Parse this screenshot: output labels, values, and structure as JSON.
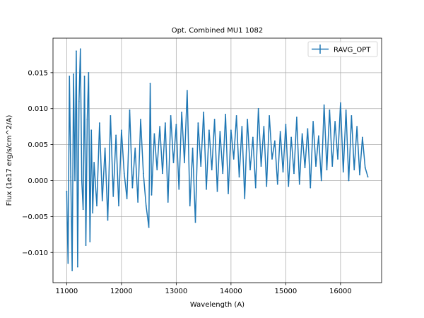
{
  "chart_data": {
    "type": "line",
    "title": "Opt. Combined MU1 1082",
    "xlabel": "Wavelength (A)",
    "ylabel": "Flux (1e17 erg/s/cm^2/A)",
    "xlim": [
      10750,
      16750
    ],
    "ylim": [
      -0.0142,
      0.0198
    ],
    "grid": true,
    "legend_position": "top-right",
    "x_ticks": [
      11000,
      12000,
      13000,
      14000,
      15000,
      16000
    ],
    "x_tick_labels": [
      "11000",
      "12000",
      "13000",
      "14000",
      "15000",
      "16000"
    ],
    "y_ticks": [
      -0.01,
      -0.005,
      0.0,
      0.005,
      0.01,
      0.015
    ],
    "y_tick_labels": [
      "−0.010",
      "−0.005",
      "0.000",
      "0.005",
      "0.010",
      "0.015"
    ],
    "series": [
      {
        "name": "RAVG_OPT",
        "color": "#1f77b4",
        "style": "errorbar-line",
        "x": [
          11000,
          11025,
          11050,
          11075,
          11100,
          11125,
          11150,
          11175,
          11200,
          11225,
          11250,
          11275,
          11300,
          11325,
          11350,
          11375,
          11400,
          11425,
          11450,
          11475,
          11500,
          11550,
          11600,
          11650,
          11700,
          11750,
          11800,
          11850,
          11900,
          11950,
          12000,
          12050,
          12100,
          12150,
          12200,
          12250,
          12300,
          12350,
          12400,
          12450,
          12500,
          12525,
          12550,
          12600,
          12650,
          12700,
          12750,
          12800,
          12850,
          12900,
          12950,
          13000,
          13050,
          13100,
          13150,
          13200,
          13250,
          13300,
          13350,
          13400,
          13450,
          13500,
          13550,
          13600,
          13650,
          13700,
          13750,
          13800,
          13850,
          13900,
          13950,
          14000,
          14050,
          14100,
          14150,
          14200,
          14250,
          14300,
          14350,
          14400,
          14450,
          14500,
          14550,
          14600,
          14650,
          14700,
          14750,
          14800,
          14850,
          14900,
          14950,
          15000,
          15050,
          15100,
          15150,
          15200,
          15250,
          15300,
          15350,
          15400,
          15450,
          15500,
          15550,
          15600,
          15650,
          15700,
          15750,
          15800,
          15850,
          15900,
          15950,
          16000,
          16050,
          16100,
          16150,
          16200,
          16250,
          16300,
          16350,
          16400,
          16450,
          16500
        ],
        "y": [
          -0.0015,
          -0.0115,
          0.0145,
          0.0005,
          -0.0125,
          0.0148,
          0.0,
          0.018,
          -0.012,
          0.011,
          0.0183,
          0.0,
          -0.004,
          0.0145,
          -0.009,
          0.0085,
          0.015,
          -0.0085,
          0.007,
          -0.0045,
          0.0025,
          -0.0035,
          0.008,
          -0.0028,
          0.0045,
          -0.0055,
          0.009,
          -0.0022,
          0.0063,
          -0.0035,
          0.007,
          0.001,
          -0.0025,
          0.0098,
          -0.001,
          0.0045,
          -0.003,
          0.0085,
          0.001,
          -0.0035,
          -0.0065,
          0.0135,
          -0.002,
          0.0065,
          0.0015,
          0.0075,
          0.001,
          0.008,
          -0.003,
          0.009,
          0.0025,
          0.0078,
          -0.0012,
          0.0095,
          0.0025,
          0.0125,
          -0.0035,
          0.0045,
          -0.0058,
          0.008,
          0.002,
          0.0095,
          -0.0012,
          0.007,
          0.0015,
          0.0085,
          -0.0015,
          0.0068,
          0.001,
          0.0092,
          -0.0018,
          0.007,
          0.003,
          0.009,
          0.0005,
          0.0075,
          -0.0025,
          0.0085,
          0.0015,
          0.006,
          -0.001,
          0.01,
          0.002,
          0.0075,
          -0.0008,
          0.009,
          0.003,
          0.0055,
          -0.0005,
          0.0068,
          0.0012,
          0.0078,
          -0.0008,
          0.006,
          0.001,
          0.0088,
          -0.0005,
          0.0065,
          0.0018,
          0.0072,
          -0.001,
          0.0082,
          0.002,
          0.0062,
          0.0,
          0.0105,
          0.0015,
          0.0098,
          0.002,
          0.0082,
          0.003,
          0.0108,
          0.0012,
          0.0098,
          0.0,
          0.009,
          0.0015,
          0.0075,
          0.0008,
          0.006,
          0.0018,
          0.0005
        ]
      }
    ]
  }
}
